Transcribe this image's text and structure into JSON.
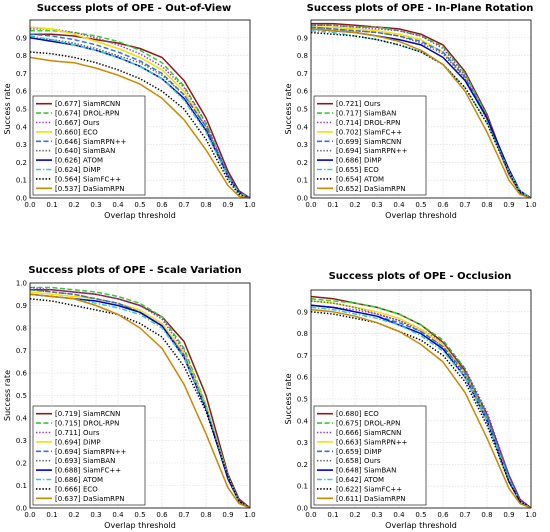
{
  "chart_data": [
    {
      "type": "line",
      "title": "Success plots of OPE - Out-of-View",
      "xlabel": "Overlap threshold",
      "ylabel": "Success rate",
      "xlim": [
        0,
        1
      ],
      "ylim": [
        0,
        1
      ],
      "x": [
        0,
        0.1,
        0.2,
        0.3,
        0.4,
        0.5,
        0.6,
        0.7,
        0.8,
        0.9,
        0.95,
        1.0
      ],
      "xticks": [
        "0.0",
        "0.1",
        "0.2",
        "0.3",
        "0.4",
        "0.5",
        "0.6",
        "0.7",
        "0.8",
        "0.9",
        "1.0"
      ],
      "yticks": [
        "0.0",
        "0.1",
        "0.2",
        "0.3",
        "0.4",
        "0.5",
        "0.6",
        "0.7",
        "0.8",
        "0.9"
      ],
      "grid": true,
      "legend_position": "bottom-left",
      "series": [
        {
          "name": "SiamRCNN",
          "score": "[0.677]",
          "color": "#8b1a1a",
          "dash": "solid",
          "values": [
            0.92,
            0.92,
            0.91,
            0.89,
            0.87,
            0.84,
            0.79,
            0.66,
            0.45,
            0.15,
            0.04,
            0.0
          ]
        },
        {
          "name": "DROL-RPN",
          "score": "[0.674]",
          "color": "#33cc33",
          "dash": "dashed",
          "values": [
            0.94,
            0.94,
            0.93,
            0.91,
            0.88,
            0.83,
            0.76,
            0.63,
            0.42,
            0.12,
            0.03,
            0.0
          ]
        },
        {
          "name": "Ours",
          "score": "[0.667]",
          "color": "#9933cc",
          "dash": "dotted",
          "values": [
            0.95,
            0.95,
            0.93,
            0.9,
            0.86,
            0.81,
            0.74,
            0.62,
            0.42,
            0.13,
            0.03,
            0.0
          ]
        },
        {
          "name": "ECO",
          "score": "[0.660]",
          "color": "#f5e000",
          "dash": "solid",
          "values": [
            0.96,
            0.95,
            0.92,
            0.88,
            0.84,
            0.79,
            0.72,
            0.6,
            0.4,
            0.12,
            0.03,
            0.0
          ]
        },
        {
          "name": "SiamRPN++",
          "score": "[0.646]",
          "color": "#3377cc",
          "dash": "dashed",
          "values": [
            0.92,
            0.91,
            0.89,
            0.86,
            0.82,
            0.77,
            0.7,
            0.58,
            0.4,
            0.13,
            0.03,
            0.0
          ]
        },
        {
          "name": "SiamBAN",
          "score": "[0.640]",
          "color": "#666666",
          "dash": "dotted",
          "values": [
            0.9,
            0.89,
            0.87,
            0.84,
            0.8,
            0.76,
            0.69,
            0.58,
            0.4,
            0.13,
            0.03,
            0.0
          ]
        },
        {
          "name": "ATOM",
          "score": "[0.626]",
          "color": "#0000cc",
          "dash": "solid",
          "values": [
            0.9,
            0.88,
            0.86,
            0.83,
            0.79,
            0.74,
            0.67,
            0.56,
            0.38,
            0.12,
            0.03,
            0.0
          ]
        },
        {
          "name": "DiMP",
          "score": "[0.624]",
          "color": "#33cccc",
          "dash": "dashdot",
          "values": [
            0.91,
            0.89,
            0.86,
            0.83,
            0.79,
            0.74,
            0.67,
            0.55,
            0.37,
            0.12,
            0.03,
            0.0
          ]
        },
        {
          "name": "SiamFC++",
          "score": "[0.564]",
          "color": "#000000",
          "dash": "dotted",
          "values": [
            0.82,
            0.81,
            0.79,
            0.76,
            0.72,
            0.67,
            0.6,
            0.5,
            0.33,
            0.1,
            0.02,
            0.0
          ]
        },
        {
          "name": "DaSiamRPN",
          "score": "[0.537]",
          "color": "#cc8800",
          "dash": "solid",
          "values": [
            0.79,
            0.77,
            0.76,
            0.73,
            0.69,
            0.64,
            0.56,
            0.44,
            0.27,
            0.07,
            0.01,
            0.0
          ]
        }
      ]
    },
    {
      "type": "line",
      "title": "Success plots of OPE - In-Plane Rotation",
      "xlabel": "Overlap threshold",
      "ylabel": "Success rate",
      "xlim": [
        0,
        1
      ],
      "ylim": [
        0,
        1
      ],
      "x": [
        0,
        0.1,
        0.2,
        0.3,
        0.4,
        0.5,
        0.6,
        0.7,
        0.8,
        0.9,
        0.95,
        1.0
      ],
      "xticks": [
        "0.0",
        "0.1",
        "0.2",
        "0.3",
        "0.4",
        "0.5",
        "0.6",
        "0.7",
        "0.8",
        "0.9",
        "1.0"
      ],
      "yticks": [
        "0.0",
        "0.1",
        "0.2",
        "0.3",
        "0.4",
        "0.5",
        "0.6",
        "0.7",
        "0.8",
        "0.9"
      ],
      "grid": true,
      "legend_position": "bottom-left",
      "series": [
        {
          "name": "Ours",
          "score": "[0.721]",
          "color": "#8b1a1a",
          "dash": "solid",
          "values": [
            0.98,
            0.98,
            0.97,
            0.96,
            0.95,
            0.92,
            0.86,
            0.71,
            0.47,
            0.14,
            0.03,
            0.0
          ]
        },
        {
          "name": "SiamBAN",
          "score": "[0.717]",
          "color": "#33cc33",
          "dash": "dashed",
          "values": [
            0.97,
            0.97,
            0.96,
            0.96,
            0.94,
            0.91,
            0.85,
            0.7,
            0.46,
            0.14,
            0.03,
            0.0
          ]
        },
        {
          "name": "DROL-RPN",
          "score": "[0.714]",
          "color": "#9933cc",
          "dash": "dotted",
          "values": [
            0.97,
            0.97,
            0.96,
            0.95,
            0.94,
            0.91,
            0.84,
            0.69,
            0.45,
            0.13,
            0.03,
            0.0
          ]
        },
        {
          "name": "SiamFC++",
          "score": "[0.702]",
          "color": "#f5e000",
          "dash": "solid",
          "values": [
            0.96,
            0.96,
            0.95,
            0.94,
            0.92,
            0.89,
            0.82,
            0.68,
            0.44,
            0.14,
            0.03,
            0.0
          ]
        },
        {
          "name": "SiamRCNN",
          "score": "[0.699]",
          "color": "#3377cc",
          "dash": "dashed",
          "values": [
            0.96,
            0.95,
            0.94,
            0.93,
            0.91,
            0.88,
            0.82,
            0.68,
            0.45,
            0.15,
            0.04,
            0.0
          ]
        },
        {
          "name": "SiamRPN++",
          "score": "[0.694]",
          "color": "#666666",
          "dash": "dotted",
          "values": [
            0.96,
            0.95,
            0.94,
            0.93,
            0.91,
            0.87,
            0.81,
            0.67,
            0.44,
            0.13,
            0.03,
            0.0
          ]
        },
        {
          "name": "DiMP",
          "score": "[0.686]",
          "color": "#0000cc",
          "dash": "solid",
          "values": [
            0.95,
            0.94,
            0.93,
            0.91,
            0.89,
            0.86,
            0.79,
            0.66,
            0.45,
            0.16,
            0.04,
            0.0
          ]
        },
        {
          "name": "ECO",
          "score": "[0.655]",
          "color": "#33cccc",
          "dash": "dashdot",
          "values": [
            0.94,
            0.93,
            0.91,
            0.89,
            0.86,
            0.82,
            0.75,
            0.62,
            0.42,
            0.15,
            0.04,
            0.0
          ]
        },
        {
          "name": "ATOM",
          "score": "[0.654]",
          "color": "#000000",
          "dash": "dotted",
          "values": [
            0.93,
            0.92,
            0.91,
            0.89,
            0.86,
            0.82,
            0.75,
            0.62,
            0.42,
            0.14,
            0.03,
            0.0
          ]
        },
        {
          "name": "DaSiamRPN",
          "score": "[0.652]",
          "color": "#cc8800",
          "dash": "solid",
          "values": [
            0.95,
            0.94,
            0.93,
            0.91,
            0.88,
            0.83,
            0.75,
            0.6,
            0.37,
            0.1,
            0.02,
            0.0
          ]
        }
      ]
    },
    {
      "type": "line",
      "title": "Success plots of OPE - Scale Variation",
      "xlabel": "Overlap threshold",
      "ylabel": "Success rate",
      "xlim": [
        0,
        1
      ],
      "ylim": [
        0,
        1
      ],
      "x": [
        0,
        0.1,
        0.2,
        0.3,
        0.4,
        0.5,
        0.6,
        0.7,
        0.8,
        0.9,
        0.95,
        1.0
      ],
      "xticks": [
        "0.0",
        "0.1",
        "0.2",
        "0.3",
        "0.4",
        "0.5",
        "0.6",
        "0.7",
        "0.8",
        "0.9",
        "1.0"
      ],
      "yticks": [
        "0.0",
        "0.1",
        "0.2",
        "0.3",
        "0.4",
        "0.5",
        "0.6",
        "0.7",
        "0.8",
        "0.9",
        "1.0"
      ],
      "grid": true,
      "legend_position": "bottom-left",
      "series": [
        {
          "name": "SiamRCNN",
          "score": "[0.719]",
          "color": "#8b1a1a",
          "dash": "solid",
          "values": [
            0.97,
            0.97,
            0.96,
            0.95,
            0.93,
            0.9,
            0.85,
            0.74,
            0.5,
            0.15,
            0.04,
            0.0
          ]
        },
        {
          "name": "DROL-RPN",
          "score": "[0.715]",
          "color": "#33cc33",
          "dash": "dashed",
          "values": [
            0.98,
            0.98,
            0.97,
            0.96,
            0.94,
            0.91,
            0.85,
            0.71,
            0.46,
            0.13,
            0.03,
            0.0
          ]
        },
        {
          "name": "Ours",
          "score": "[0.711]",
          "color": "#9933cc",
          "dash": "dotted",
          "values": [
            0.98,
            0.97,
            0.96,
            0.95,
            0.93,
            0.9,
            0.84,
            0.7,
            0.46,
            0.13,
            0.03,
            0.0
          ]
        },
        {
          "name": "DiMP",
          "score": "[0.694]",
          "color": "#f5e000",
          "dash": "solid",
          "values": [
            0.96,
            0.95,
            0.94,
            0.93,
            0.91,
            0.88,
            0.82,
            0.69,
            0.46,
            0.14,
            0.03,
            0.0
          ]
        },
        {
          "name": "SiamRPN++",
          "score": "[0.694]",
          "color": "#3377cc",
          "dash": "dashed",
          "values": [
            0.97,
            0.96,
            0.95,
            0.93,
            0.91,
            0.87,
            0.81,
            0.68,
            0.45,
            0.13,
            0.03,
            0.0
          ]
        },
        {
          "name": "SiamBAN",
          "score": "[0.693]",
          "color": "#666666",
          "dash": "dotted",
          "values": [
            0.97,
            0.96,
            0.95,
            0.93,
            0.91,
            0.87,
            0.81,
            0.68,
            0.45,
            0.13,
            0.03,
            0.0
          ]
        },
        {
          "name": "SiamFC++",
          "score": "[0.688]",
          "color": "#0000cc",
          "dash": "solid",
          "values": [
            0.95,
            0.94,
            0.93,
            0.92,
            0.9,
            0.87,
            0.81,
            0.67,
            0.44,
            0.13,
            0.03,
            0.0
          ]
        },
        {
          "name": "ATOM",
          "score": "[0.686]",
          "color": "#33cccc",
          "dash": "dashdot",
          "values": [
            0.95,
            0.94,
            0.93,
            0.91,
            0.89,
            0.86,
            0.8,
            0.67,
            0.45,
            0.14,
            0.03,
            0.0
          ]
        },
        {
          "name": "ECO",
          "score": "[0.666]",
          "color": "#000000",
          "dash": "dotted",
          "values": [
            0.93,
            0.92,
            0.9,
            0.88,
            0.86,
            0.82,
            0.76,
            0.63,
            0.43,
            0.14,
            0.03,
            0.0
          ]
        },
        {
          "name": "DaSiamRPN",
          "score": "[0.637]",
          "color": "#cc8800",
          "dash": "solid",
          "values": [
            0.95,
            0.94,
            0.93,
            0.9,
            0.86,
            0.8,
            0.71,
            0.55,
            0.33,
            0.09,
            0.02,
            0.0
          ]
        }
      ]
    },
    {
      "type": "line",
      "title": "Success plots of OPE - Occlusion",
      "xlabel": "Overlap threshold",
      "ylabel": "Success rate",
      "xlim": [
        0,
        1
      ],
      "ylim": [
        0,
        1
      ],
      "x": [
        0,
        0.1,
        0.2,
        0.3,
        0.4,
        0.5,
        0.6,
        0.7,
        0.8,
        0.9,
        0.95,
        1.0
      ],
      "xticks": [
        "0.0",
        "0.1",
        "0.2",
        "0.3",
        "0.4",
        "0.5",
        "0.6",
        "0.7",
        "0.8",
        "0.9",
        "1.0"
      ],
      "yticks": [
        "0.0",
        "0.1",
        "0.2",
        "0.3",
        "0.4",
        "0.5",
        "0.6",
        "0.7",
        "0.8",
        "0.9"
      ],
      "grid": true,
      "legend_position": "bottom-left",
      "series": [
        {
          "name": "ECO",
          "score": "[0.680]",
          "color": "#8b1a1a",
          "dash": "solid",
          "values": [
            0.97,
            0.96,
            0.94,
            0.92,
            0.89,
            0.84,
            0.76,
            0.63,
            0.43,
            0.15,
            0.04,
            0.0
          ]
        },
        {
          "name": "DROL-RPN",
          "score": "[0.675]",
          "color": "#33cc33",
          "dash": "dashed",
          "values": [
            0.96,
            0.95,
            0.94,
            0.92,
            0.89,
            0.84,
            0.77,
            0.64,
            0.42,
            0.12,
            0.03,
            0.0
          ]
        },
        {
          "name": "SiamRCNN",
          "score": "[0.666]",
          "color": "#9933cc",
          "dash": "dotted",
          "values": [
            0.93,
            0.92,
            0.91,
            0.89,
            0.86,
            0.82,
            0.76,
            0.64,
            0.44,
            0.15,
            0.04,
            0.0
          ]
        },
        {
          "name": "SiamRPN++",
          "score": "[0.663]",
          "color": "#f5e000",
          "dash": "solid",
          "values": [
            0.95,
            0.94,
            0.92,
            0.9,
            0.87,
            0.82,
            0.75,
            0.62,
            0.41,
            0.12,
            0.03,
            0.0
          ]
        },
        {
          "name": "DiMP",
          "score": "[0.659]",
          "color": "#3377cc",
          "dash": "dashed",
          "values": [
            0.93,
            0.92,
            0.9,
            0.88,
            0.85,
            0.81,
            0.74,
            0.62,
            0.42,
            0.14,
            0.03,
            0.0
          ]
        },
        {
          "name": "Ours",
          "score": "[0.658]",
          "color": "#666666",
          "dash": "dotted",
          "values": [
            0.95,
            0.94,
            0.92,
            0.89,
            0.86,
            0.81,
            0.74,
            0.61,
            0.41,
            0.12,
            0.03,
            0.0
          ]
        },
        {
          "name": "SiamBAN",
          "score": "[0.648]",
          "color": "#0000cc",
          "dash": "solid",
          "values": [
            0.93,
            0.92,
            0.9,
            0.88,
            0.84,
            0.8,
            0.73,
            0.6,
            0.4,
            0.12,
            0.03,
            0.0
          ]
        },
        {
          "name": "ATOM",
          "score": "[0.642]",
          "color": "#33cccc",
          "dash": "dashdot",
          "values": [
            0.92,
            0.91,
            0.89,
            0.87,
            0.84,
            0.79,
            0.72,
            0.6,
            0.4,
            0.13,
            0.03,
            0.0
          ]
        },
        {
          "name": "SiamFC++",
          "score": "[0.622]",
          "color": "#000000",
          "dash": "dotted",
          "values": [
            0.9,
            0.89,
            0.87,
            0.85,
            0.81,
            0.77,
            0.7,
            0.58,
            0.38,
            0.12,
            0.03,
            0.0
          ]
        },
        {
          "name": "DaSiamRPN",
          "score": "[0.611]",
          "color": "#cc8800",
          "dash": "solid",
          "values": [
            0.91,
            0.9,
            0.88,
            0.85,
            0.81,
            0.75,
            0.67,
            0.53,
            0.32,
            0.09,
            0.02,
            0.0
          ]
        }
      ]
    }
  ]
}
